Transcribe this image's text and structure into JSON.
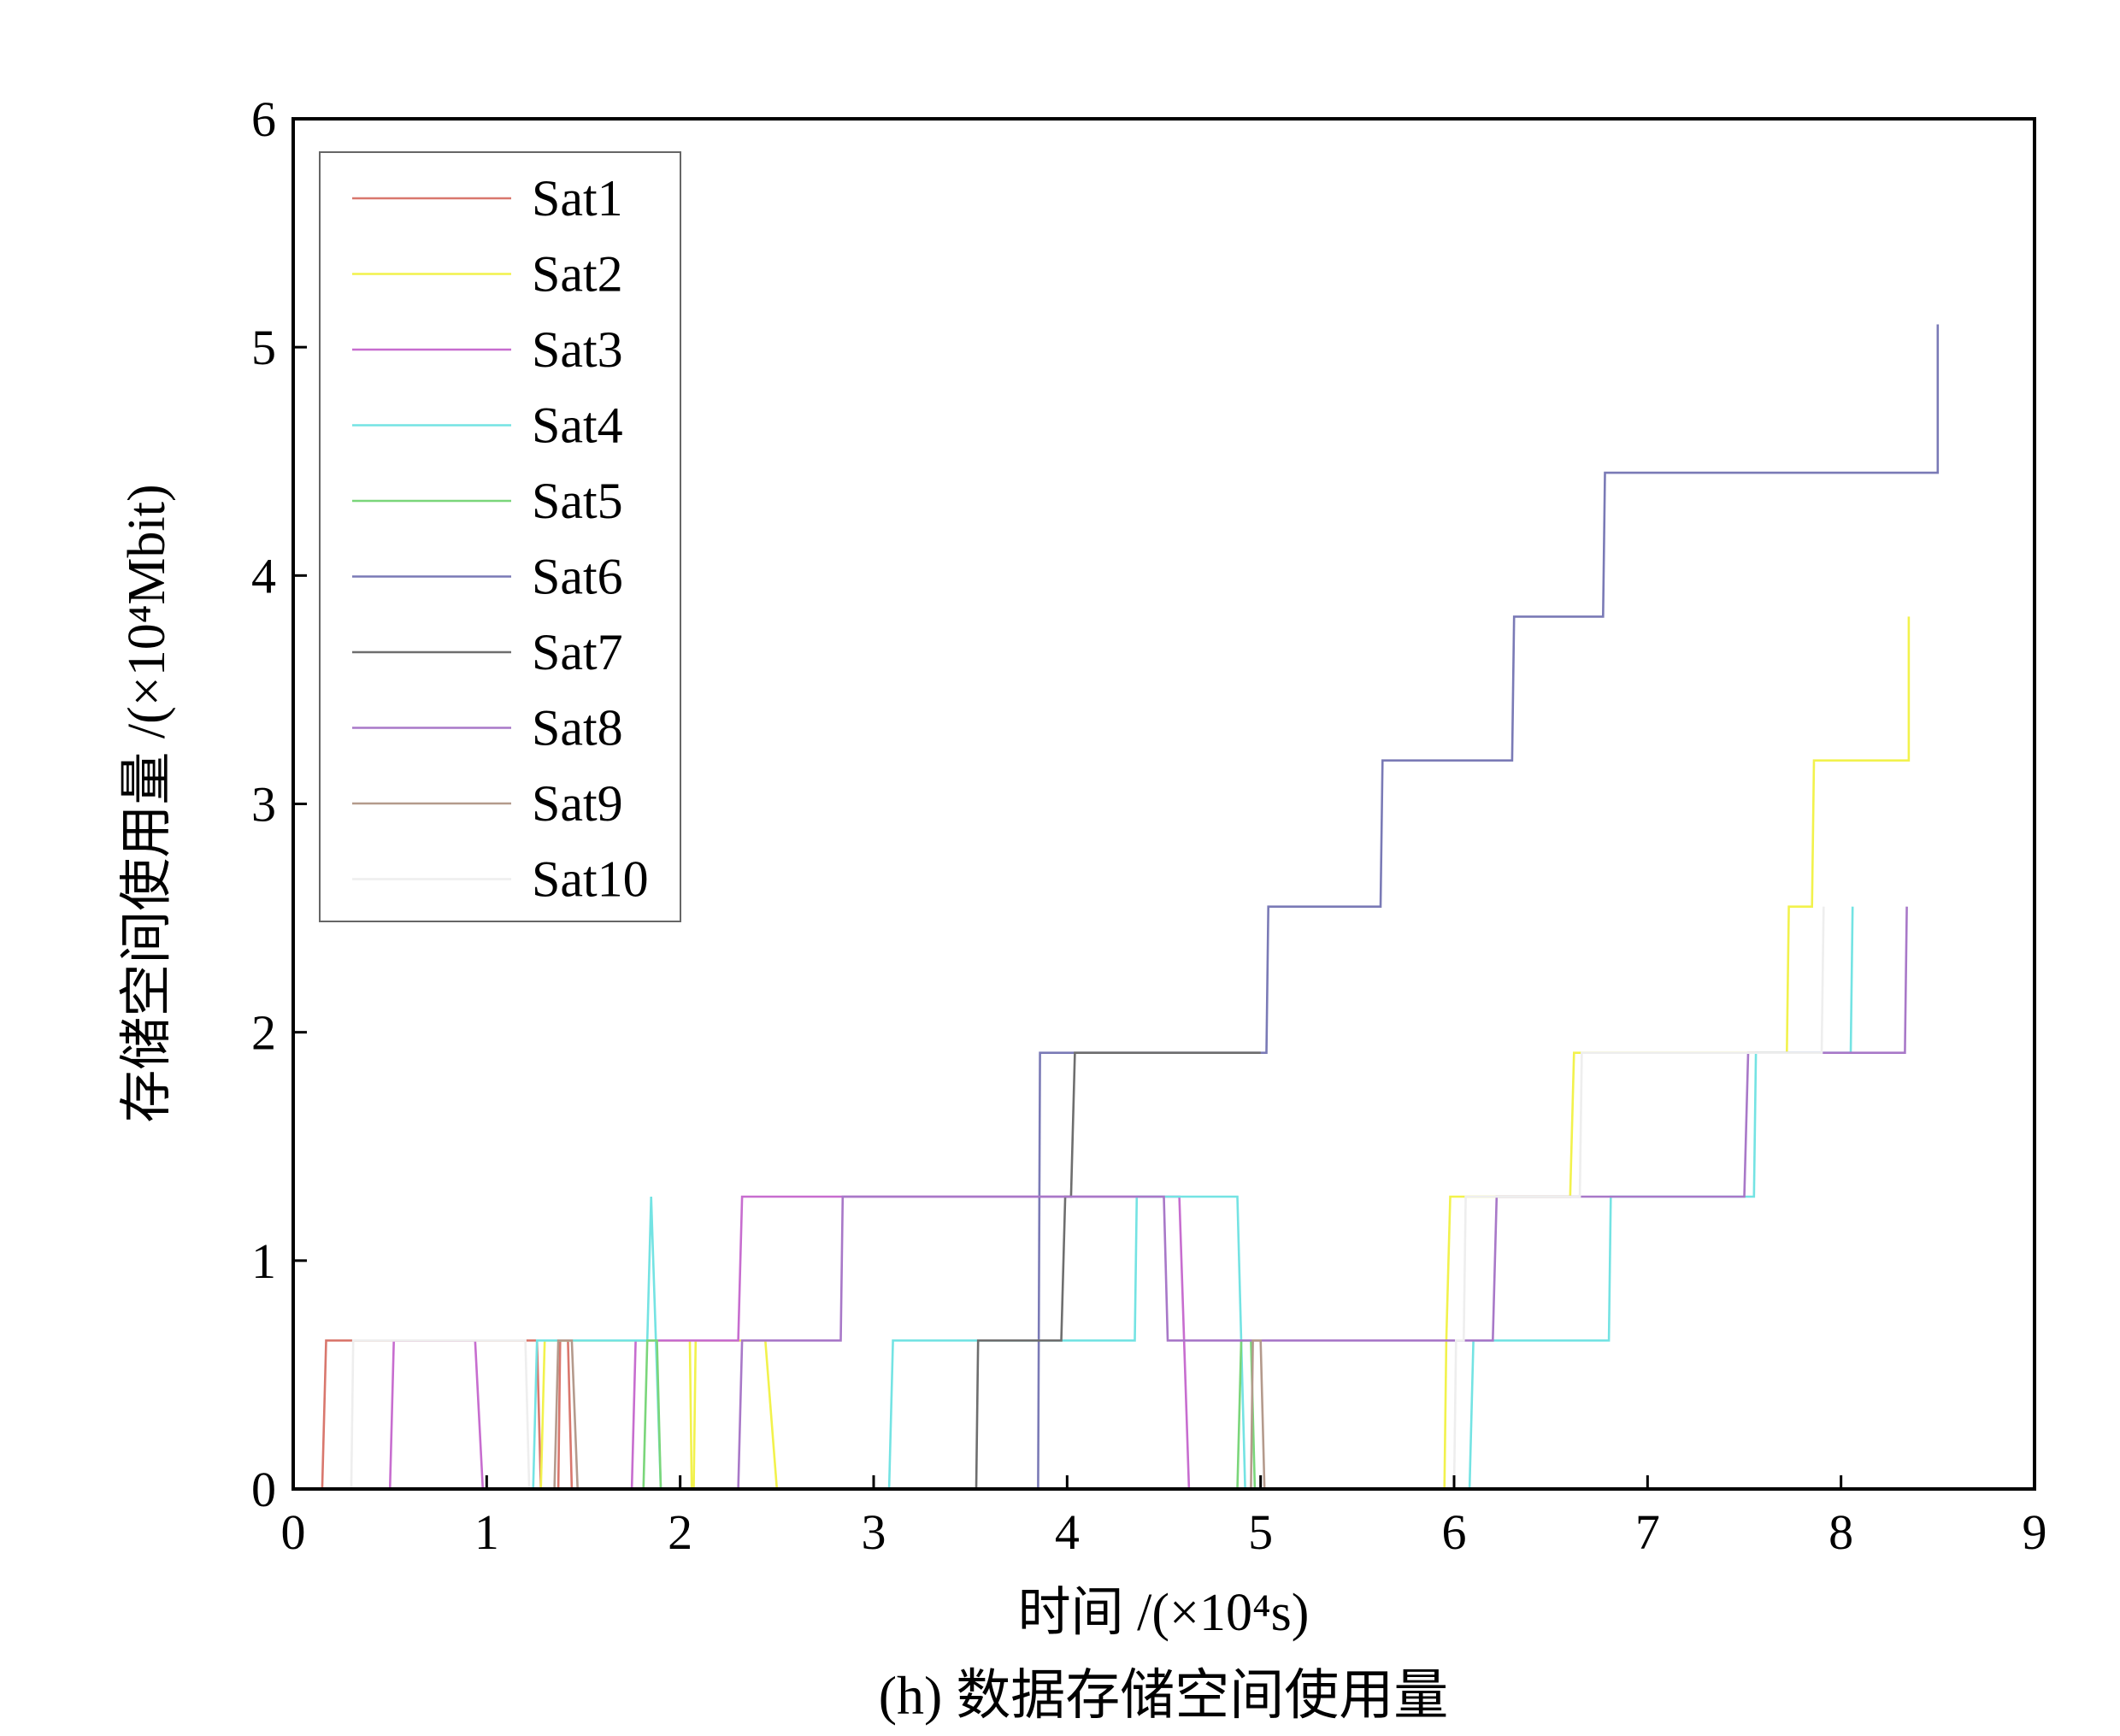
{
  "caption": "(h) 数据存储空间使用量",
  "chart_data": {
    "type": "line",
    "title": "",
    "xlabel": "时间 /(×10⁴s)",
    "ylabel": "存储空间使用量 /(×10⁴Mbit)",
    "xlim": [
      0,
      9
    ],
    "ylim": [
      0,
      6
    ],
    "xticks": [
      "0",
      "1",
      "2",
      "3",
      "4",
      "5",
      "6",
      "7",
      "8",
      "9"
    ],
    "yticks": [
      "0",
      "1",
      "2",
      "3",
      "4",
      "5",
      "6"
    ],
    "grid": false,
    "legend_position": "top-left",
    "series": [
      {
        "name": "Sat1",
        "color": "#d9776d",
        "points": [
          [
            0.15,
            0
          ],
          [
            0.17,
            0.65
          ],
          [
            1.26,
            0.65
          ],
          [
            1.28,
            0
          ],
          [
            1.37,
            0
          ],
          [
            1.38,
            0.65
          ],
          [
            1.42,
            0.65
          ],
          [
            1.44,
            0
          ]
        ]
      },
      {
        "name": "Sat2",
        "color": "#f2f24c",
        "points": [
          [
            1.28,
            0
          ],
          [
            1.3,
            0.65
          ],
          [
            2.05,
            0.65
          ],
          [
            2.06,
            0
          ],
          [
            2.07,
            0
          ],
          [
            2.08,
            0.65
          ],
          [
            2.44,
            0.65
          ],
          [
            2.5,
            0
          ],
          [
            5.95,
            0
          ],
          [
            5.96,
            0.65
          ],
          [
            5.98,
            1.28
          ],
          [
            6.6,
            1.28
          ],
          [
            6.62,
            1.91
          ],
          [
            7.72,
            1.91
          ],
          [
            7.73,
            2.55
          ],
          [
            7.85,
            2.55
          ],
          [
            7.86,
            3.19
          ],
          [
            8.35,
            3.19
          ],
          [
            8.35,
            3.82
          ]
        ]
      },
      {
        "name": "Sat3",
        "color": "#c76dcf",
        "points": [
          [
            0.5,
            0
          ],
          [
            0.52,
            0.65
          ],
          [
            0.94,
            0.65
          ],
          [
            0.98,
            0
          ],
          [
            1.75,
            0
          ],
          [
            1.77,
            0.65
          ],
          [
            2.3,
            0.65
          ],
          [
            2.32,
            1.28
          ],
          [
            4.58,
            1.28
          ],
          [
            4.63,
            0
          ]
        ]
      },
      {
        "name": "Sat4",
        "color": "#74e3e3",
        "points": [
          [
            1.24,
            0
          ],
          [
            1.26,
            0.65
          ],
          [
            1.83,
            0.65
          ],
          [
            1.85,
            1.28
          ],
          [
            1.9,
            0
          ],
          [
            3.08,
            0
          ],
          [
            3.1,
            0.65
          ],
          [
            4.35,
            0.65
          ],
          [
            4.36,
            1.28
          ],
          [
            4.88,
            1.28
          ],
          [
            4.92,
            0
          ],
          [
            6.08,
            0
          ],
          [
            6.1,
            0.65
          ],
          [
            6.8,
            0.65
          ],
          [
            6.81,
            1.28
          ],
          [
            7.55,
            1.28
          ],
          [
            7.56,
            1.91
          ],
          [
            8.05,
            1.91
          ],
          [
            8.06,
            2.55
          ]
        ]
      },
      {
        "name": "Sat5",
        "color": "#7ad67a",
        "points": [
          [
            1.81,
            0
          ],
          [
            1.83,
            0.65
          ],
          [
            1.88,
            0.65
          ],
          [
            1.9,
            0
          ],
          [
            4.88,
            0
          ],
          [
            4.9,
            0.65
          ],
          [
            4.95,
            0.65
          ],
          [
            4.97,
            0
          ]
        ]
      },
      {
        "name": "Sat6",
        "color": "#7a7ab6",
        "points": [
          [
            3.85,
            0
          ],
          [
            3.86,
            1.91
          ],
          [
            5.03,
            1.91
          ],
          [
            5.04,
            2.55
          ],
          [
            5.62,
            2.55
          ],
          [
            5.63,
            3.19
          ],
          [
            6.3,
            3.19
          ],
          [
            6.31,
            3.82
          ],
          [
            6.77,
            3.82
          ],
          [
            6.78,
            4.45
          ],
          [
            8.5,
            4.45
          ],
          [
            8.5,
            5.1
          ]
        ]
      },
      {
        "name": "Sat7",
        "color": "#6e6e6e",
        "points": [
          [
            3.53,
            0
          ],
          [
            3.54,
            0.65
          ],
          [
            3.97,
            0.65
          ],
          [
            3.99,
            1.28
          ],
          [
            4.02,
            1.28
          ],
          [
            4.04,
            1.91
          ],
          [
            5.0,
            1.91
          ]
        ]
      },
      {
        "name": "Sat8",
        "color": "#a878c8",
        "points": [
          [
            2.3,
            0
          ],
          [
            2.32,
            0.65
          ],
          [
            2.83,
            0.65
          ],
          [
            2.84,
            1.28
          ],
          [
            4.5,
            1.28
          ],
          [
            4.52,
            0.65
          ],
          [
            6.2,
            0.65
          ],
          [
            6.22,
            1.28
          ],
          [
            7.5,
            1.28
          ],
          [
            7.52,
            1.91
          ],
          [
            8.33,
            1.91
          ],
          [
            8.34,
            2.55
          ]
        ]
      },
      {
        "name": "Sat9",
        "color": "#b49a8c",
        "points": [
          [
            1.35,
            0
          ],
          [
            1.37,
            0.65
          ],
          [
            1.44,
            0.65
          ],
          [
            1.47,
            0
          ],
          [
            4.95,
            0
          ],
          [
            4.96,
            0.65
          ],
          [
            5.0,
            0.65
          ],
          [
            5.02,
            0
          ]
        ]
      },
      {
        "name": "Sat10",
        "color": "#eeeeee",
        "points": [
          [
            0.3,
            0
          ],
          [
            0.31,
            0.65
          ],
          [
            1.2,
            0.65
          ],
          [
            1.22,
            0
          ],
          [
            6.0,
            0
          ],
          [
            6.01,
            0.65
          ],
          [
            6.05,
            0.65
          ],
          [
            6.06,
            1.28
          ],
          [
            6.65,
            1.28
          ],
          [
            6.66,
            1.91
          ],
          [
            7.9,
            1.91
          ],
          [
            7.91,
            2.55
          ]
        ]
      }
    ]
  }
}
